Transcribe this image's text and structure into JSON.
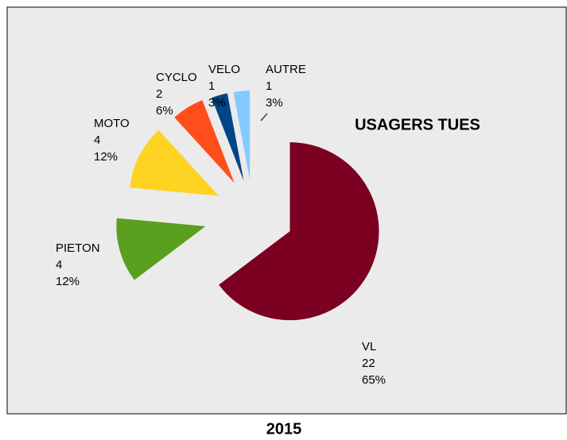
{
  "chart_data": {
    "type": "pie",
    "title": "USAGERS TUES",
    "subtitle": "2015",
    "categories": [
      "VL",
      "PIETON",
      "MOTO",
      "CYCLO",
      "VELO",
      "AUTRE"
    ],
    "values": [
      22,
      4,
      4,
      2,
      1,
      1
    ],
    "percents": [
      65,
      12,
      12,
      6,
      3,
      3
    ],
    "percent_labels": [
      "65%",
      "12%",
      "12%",
      "6%",
      "3%",
      "3%"
    ],
    "colors": [
      "#7b0021",
      "#5b9f1f",
      "#ffd322",
      "#ff4d1b",
      "#004586",
      "#83caff"
    ]
  }
}
